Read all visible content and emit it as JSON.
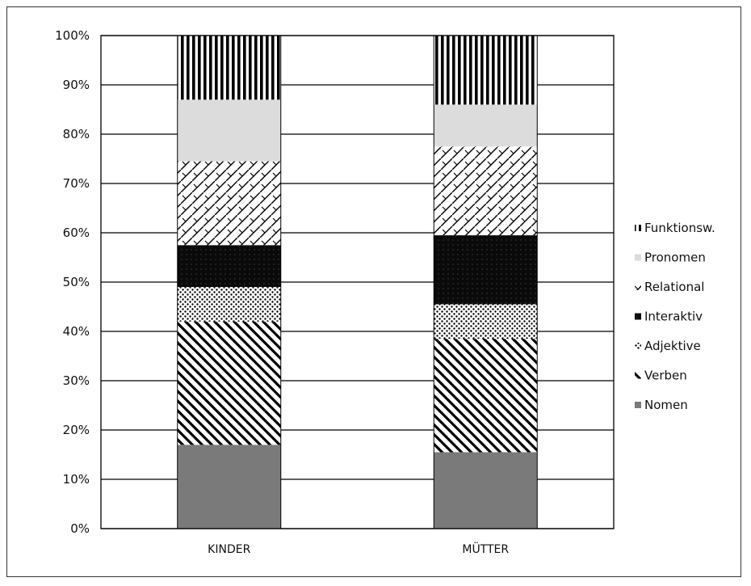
{
  "chart_data": {
    "type": "bar",
    "stacked": true,
    "percent": true,
    "categories": [
      "KINDER",
      "MÜTTER"
    ],
    "series": [
      {
        "name": "Nomen",
        "values": [
          17,
          15.5
        ],
        "pattern": "solid-gray"
      },
      {
        "name": "Verben",
        "values": [
          25,
          23
        ],
        "pattern": "diagonal-stripes"
      },
      {
        "name": "Adjektive",
        "values": [
          7,
          7
        ],
        "pattern": "dots"
      },
      {
        "name": "Interaktiv",
        "values": [
          8.5,
          14
        ],
        "pattern": "dark-dotted"
      },
      {
        "name": "Relational",
        "values": [
          17,
          18
        ],
        "pattern": "crosshatch"
      },
      {
        "name": "Pronomen",
        "values": [
          12.5,
          8.5
        ],
        "pattern": "light-gray"
      },
      {
        "name": "Funktionsw.",
        "values": [
          13,
          14
        ],
        "pattern": "vertical-stripes"
      }
    ],
    "legend_labels": [
      "Funktionsw.",
      "Pronomen",
      "Relational",
      "Interaktiv",
      "Adjektive",
      "Verben",
      "Nomen"
    ],
    "ytick_labels": [
      "0%",
      "10%",
      "20%",
      "30%",
      "40%",
      "50%",
      "60%",
      "70%",
      "80%",
      "90%",
      "100%"
    ],
    "ylim": [
      0,
      100
    ],
    "grid": true,
    "legend_position": "right"
  }
}
